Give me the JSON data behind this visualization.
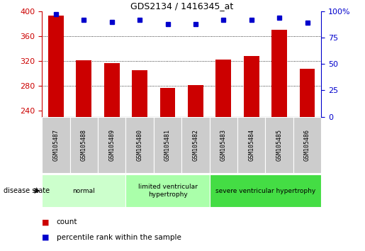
{
  "title": "GDS2134 / 1416345_at",
  "samples": [
    "GSM105487",
    "GSM105488",
    "GSM105489",
    "GSM105480",
    "GSM105481",
    "GSM105482",
    "GSM105483",
    "GSM105484",
    "GSM105485",
    "GSM105486"
  ],
  "counts": [
    393,
    321,
    316,
    305,
    277,
    281,
    322,
    328,
    370,
    307
  ],
  "percentiles": [
    97,
    92,
    90,
    92,
    88,
    88,
    92,
    92,
    94,
    89
  ],
  "ylim_left": [
    230,
    400
  ],
  "ylim_right": [
    0,
    100
  ],
  "yticks_left": [
    240,
    280,
    320,
    360,
    400
  ],
  "yticks_right": [
    0,
    25,
    50,
    75,
    100
  ],
  "bar_color": "#cc0000",
  "dot_color": "#0000cc",
  "tick_bg": "#cccccc",
  "groups": [
    {
      "label": "normal",
      "start": 0,
      "end": 3,
      "color": "#ccffcc"
    },
    {
      "label": "limited ventricular\nhypertrophy",
      "start": 3,
      "end": 6,
      "color": "#aaffaa"
    },
    {
      "label": "severe ventricular hypertrophy",
      "start": 6,
      "end": 10,
      "color": "#44dd44"
    }
  ],
  "legend_count_label": "count",
  "legend_pct_label": "percentile rank within the sample",
  "disease_state_label": "disease state"
}
